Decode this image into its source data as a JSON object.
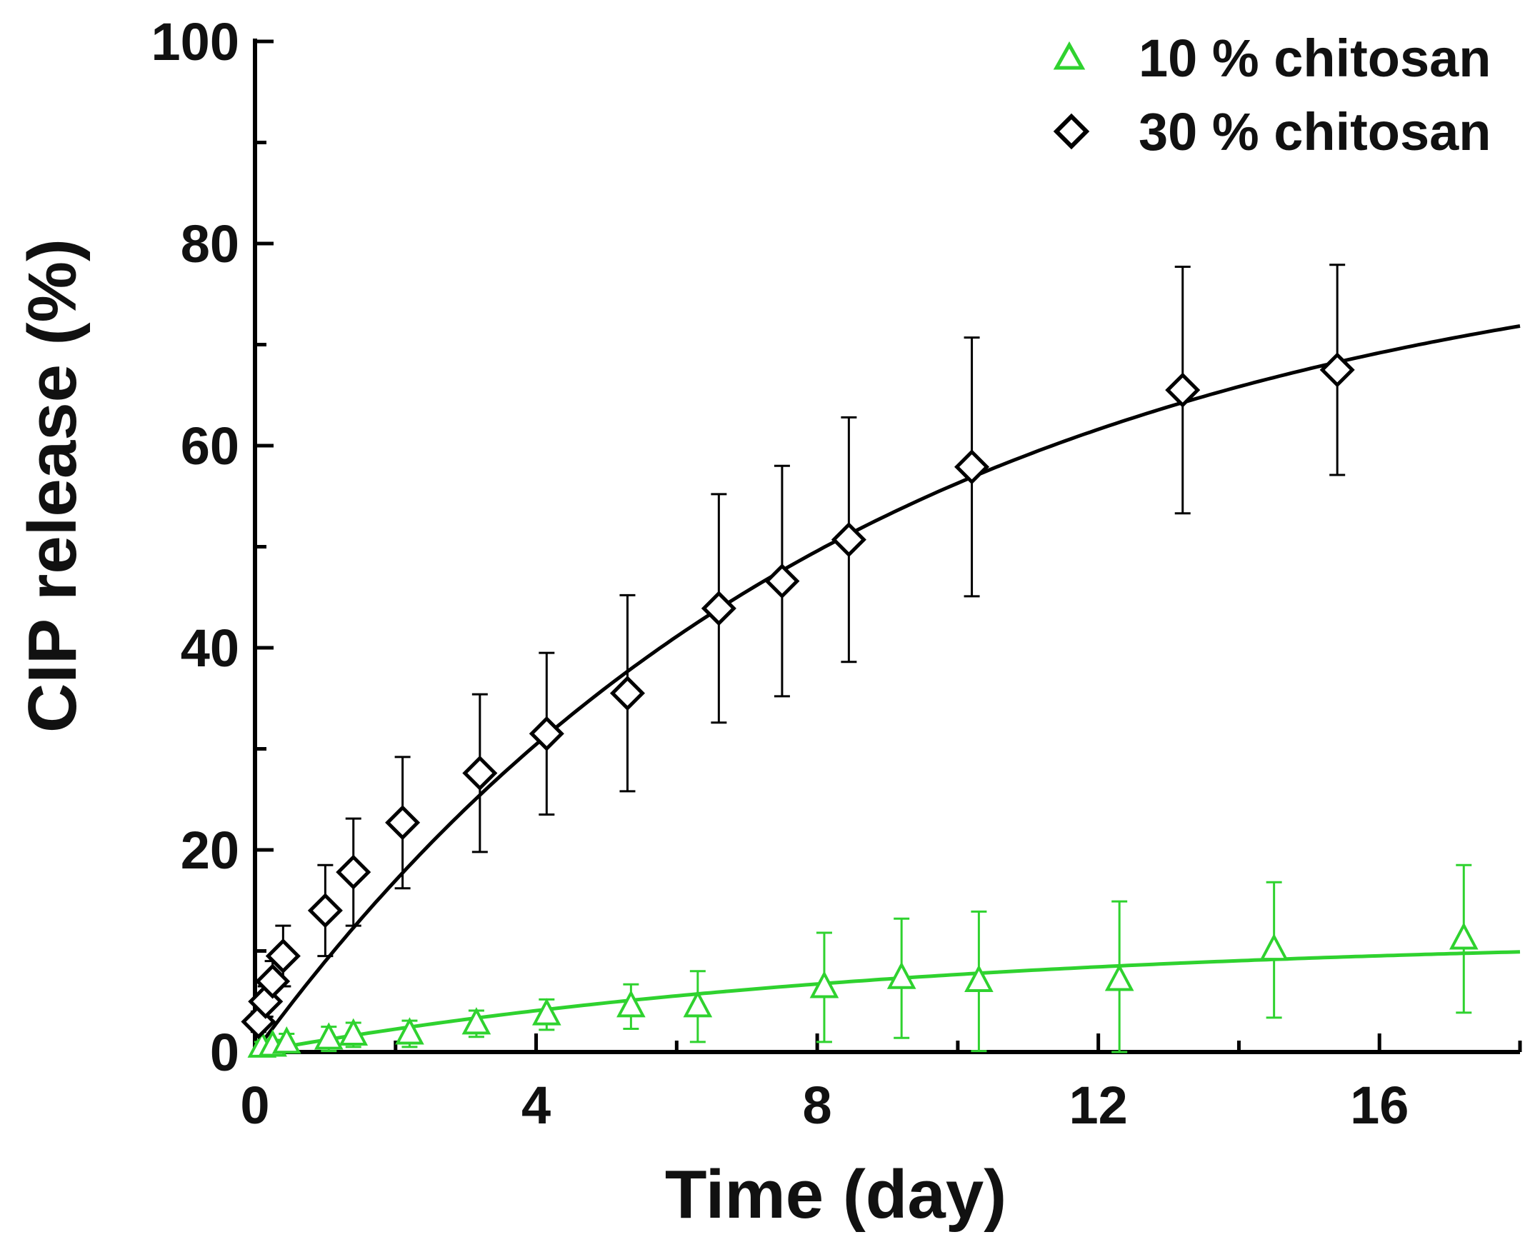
{
  "chart_data": {
    "type": "scatter",
    "xlabel": "Time (day)",
    "ylabel": "CIP release (%)",
    "xlim": [
      0,
      18
    ],
    "ylim": [
      0,
      100
    ],
    "x_ticks": [
      "0",
      "4",
      "8",
      "12",
      "16"
    ],
    "y_ticks": [
      "0",
      "20",
      "40",
      "60",
      "80",
      "100"
    ],
    "grid": false,
    "legend_position": "top-right",
    "series": [
      {
        "name": "10 % chitosan",
        "marker": "triangle",
        "color": "#2fd22f",
        "x": [
          0.1,
          0.25,
          0.45,
          1.05,
          1.4,
          2.2,
          3.15,
          4.15,
          5.35,
          6.3,
          8.1,
          9.2,
          10.3,
          12.3,
          14.5,
          17.2
        ],
        "y": [
          0.5,
          0.6,
          0.9,
          1.3,
          1.7,
          1.8,
          2.8,
          3.7,
          4.5,
          4.5,
          6.4,
          7.3,
          7.0,
          7.1,
          10.1,
          11.2
        ],
        "error": [
          0.5,
          0.6,
          0.9,
          1.2,
          1.2,
          1.3,
          1.3,
          1.5,
          2.2,
          3.5,
          5.4,
          5.9,
          6.9,
          7.8,
          6.7,
          7.3
        ],
        "fit": {
          "a": 11.5,
          "k": 0.11
        }
      },
      {
        "name": "30 % chitosan",
        "marker": "diamond",
        "color": "#000000",
        "x": [
          0.05,
          0.15,
          0.25,
          0.4,
          1.0,
          1.4,
          2.1,
          3.2,
          4.15,
          5.3,
          6.6,
          7.5,
          8.45,
          10.2,
          13.2,
          15.4
        ],
        "y": [
          3.0,
          5.0,
          7.0,
          9.5,
          14.0,
          17.8,
          22.7,
          27.6,
          31.5,
          35.5,
          43.9,
          46.6,
          50.7,
          57.9,
          65.5,
          67.5
        ],
        "error": [
          1.0,
          1.5,
          2.0,
          3.0,
          4.5,
          5.3,
          6.5,
          7.8,
          8.0,
          9.7,
          11.3,
          11.4,
          12.1,
          12.8,
          12.2,
          10.4
        ],
        "fit": {
          "a": 82,
          "k": 0.116
        }
      }
    ]
  }
}
